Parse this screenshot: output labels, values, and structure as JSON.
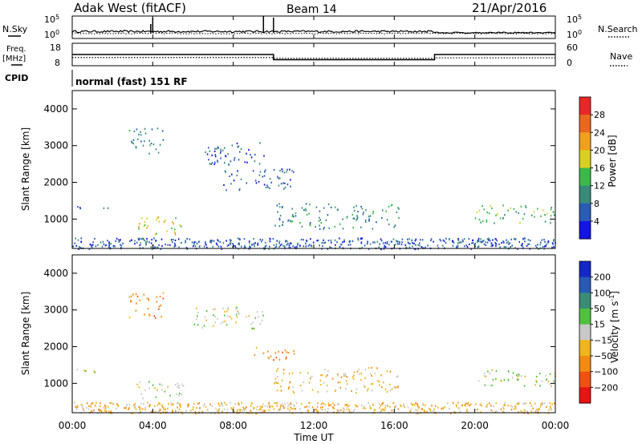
{
  "header": {
    "station": "Adak West (fitACF)",
    "beam": "Beam 14",
    "date": "21/Apr/2016"
  },
  "labels": {
    "nsky": "N.Sky",
    "nsearch": "N.Search",
    "freq_line1": "Freq.",
    "freq_line2": "[MHz]",
    "nave": "Nave",
    "cpid": "CPID",
    "cpid_value": "normal (fast) 151 RF"
  },
  "chart_data": [
    {
      "type": "line",
      "name_label": "N.Sky / N.Search",
      "x_range": [
        0,
        24
      ],
      "left_ticks": [
        "10^5",
        "10^0"
      ],
      "right_ticks": [
        "10^5",
        "10^0"
      ],
      "series_shape": "noise level near baseline with spikes near 04:00, 09:30 and 10:00; step down near 18:00"
    },
    {
      "type": "line",
      "left_axis_label": "Freq. [MHz]",
      "right_axis_label": "Nave",
      "left_ticks": [
        18,
        8
      ],
      "right_ticks": [
        60,
        0
      ],
      "freq_steps": [
        {
          "x0": 0.0,
          "x1": 10.0,
          "value": 13.0
        },
        {
          "x0": 10.0,
          "x1": 18.0,
          "value": 10.7
        },
        {
          "x0": 18.0,
          "x1": 24.0,
          "value": 13.0
        }
      ],
      "nave_steps": [
        {
          "x0": 0.0,
          "x1": 10.0,
          "value": 22
        },
        {
          "x0": 10.0,
          "x1": 18.0,
          "value": 20
        },
        {
          "x0": 18.0,
          "x1": 24.0,
          "value": 21
        }
      ]
    },
    {
      "type": "heatmap",
      "ylabel": "Slant Range [km]",
      "ylim": [
        200,
        4500
      ],
      "y_ticks": [
        1000,
        2000,
        3000,
        4000
      ],
      "colorbar_label": "Power [dB]",
      "colorbar_ticks": [
        "4",
        "8",
        "12",
        "16",
        "20",
        "24",
        "28"
      ],
      "colorbar_colors": [
        "#1414e6",
        "#2a5bb5",
        "#3a8a7a",
        "#3cb84a",
        "#d8d020",
        "#f0a020",
        "#e86820",
        "#e82828"
      ],
      "echo_regions": [
        {
          "x0": 0.0,
          "x1": 1.8,
          "y0": 1300,
          "y1": 1400,
          "level": 1
        },
        {
          "x0": 3.2,
          "x1": 5.5,
          "y0": 600,
          "y1": 1100,
          "level": 4
        },
        {
          "x0": 2.8,
          "x1": 4.5,
          "y0": 2800,
          "y1": 3500,
          "level": 2
        },
        {
          "x0": 6.0,
          "x1": 9.5,
          "y0": 2500,
          "y1": 3100,
          "level": 1
        },
        {
          "x0": 7.5,
          "x1": 11.0,
          "y0": 1800,
          "y1": 2400,
          "level": 1
        },
        {
          "x0": 10.0,
          "x1": 16.2,
          "y0": 750,
          "y1": 1450,
          "level": 2
        },
        {
          "x0": 20.0,
          "x1": 24.0,
          "y0": 900,
          "y1": 1400,
          "level": 3
        },
        {
          "x0": 0.0,
          "x1": 24.0,
          "y0": 200,
          "y1": 500,
          "level": 1
        }
      ]
    },
    {
      "type": "heatmap",
      "ylabel": "Slant Range [km]",
      "ylim": [
        200,
        4500
      ],
      "y_ticks": [
        1000,
        2000,
        3000,
        4000
      ],
      "colorbar_label": "Velocity [m s^-1]",
      "colorbar_ticks": [
        "200",
        "100",
        "50",
        "15",
        "-15",
        "-50",
        "-100",
        "-200"
      ],
      "colorbar_colors": [
        "#1428c8",
        "#285ab4",
        "#3c8c78",
        "#50c040",
        "#c8c8c8",
        "#f0b41e",
        "#f08c14",
        "#f05014",
        "#e61414"
      ],
      "echo_regions": [
        {
          "x0": 0.0,
          "x1": 1.8,
          "y0": 1300,
          "y1": 1400,
          "level": 4
        },
        {
          "x0": 3.2,
          "x1": 5.5,
          "y0": 600,
          "y1": 1100,
          "level": 4
        },
        {
          "x0": 2.8,
          "x1": 4.5,
          "y0": 2800,
          "y1": 3500,
          "level": 6
        },
        {
          "x0": 6.0,
          "x1": 9.5,
          "y0": 2500,
          "y1": 3100,
          "level": 4
        },
        {
          "x0": 9.0,
          "x1": 11.0,
          "y0": 1600,
          "y1": 2000,
          "level": 6
        },
        {
          "x0": 10.0,
          "x1": 16.2,
          "y0": 750,
          "y1": 1450,
          "level": 5
        },
        {
          "x0": 20.0,
          "x1": 24.0,
          "y0": 900,
          "y1": 1400,
          "level": 4
        },
        {
          "x0": 0.0,
          "x1": 24.0,
          "y0": 200,
          "y1": 500,
          "level": 5
        }
      ]
    }
  ],
  "x_axis": {
    "label": "Time UT",
    "ticks": [
      "00:00",
      "04:00",
      "08:00",
      "12:00",
      "16:00",
      "20:00",
      "00:00"
    ]
  }
}
